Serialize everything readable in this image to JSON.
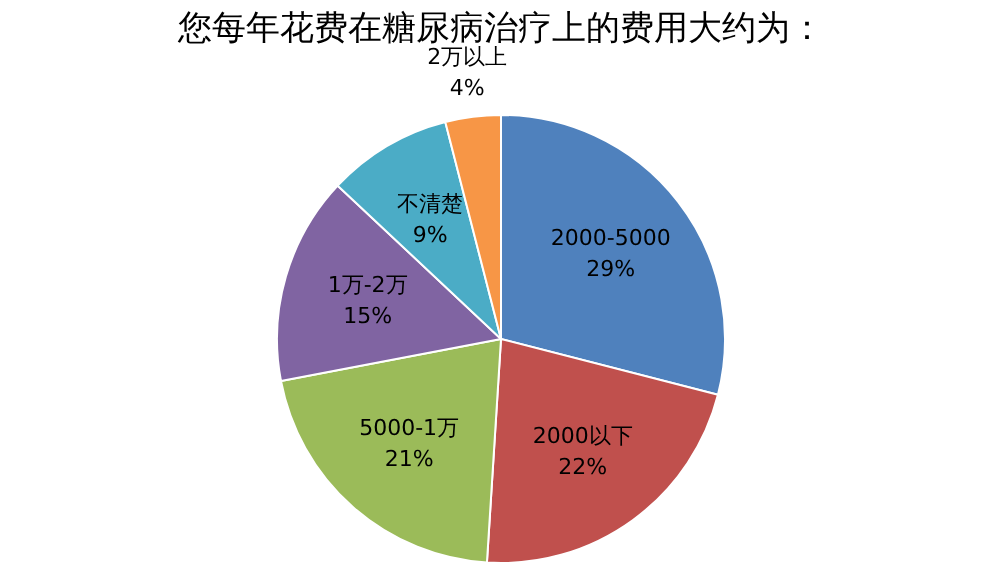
{
  "chart_data": {
    "type": "pie",
    "title": "您每年花费在糖尿病治疗上的费用大约为：",
    "categories": [
      "2000-5000",
      "2000以下",
      "5000-1万",
      "1万-2万",
      "不清楚",
      "2万以上"
    ],
    "values": [
      29,
      22,
      21,
      15,
      9,
      4
    ],
    "value_labels": [
      "29%",
      "22%",
      "21%",
      "15%",
      "9%",
      "4%"
    ],
    "colors": [
      "#4f81bd",
      "#c0504d",
      "#9bbb59",
      "#8064a2",
      "#4bacc6",
      "#f79646"
    ]
  }
}
